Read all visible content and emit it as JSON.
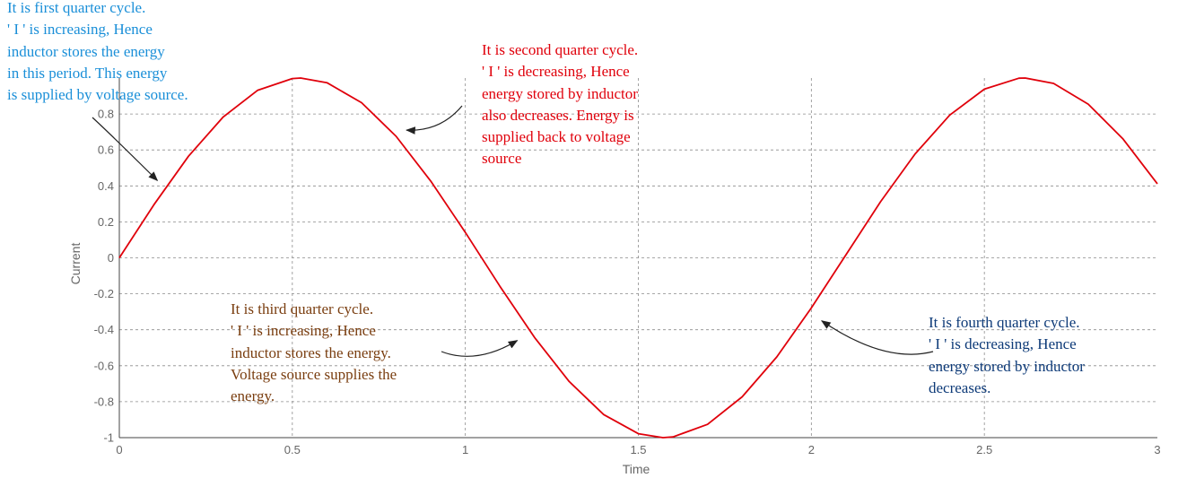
{
  "chart_data": {
    "type": "line",
    "title": "",
    "xlabel": "Time",
    "ylabel": "Current",
    "xlim": [
      0,
      3
    ],
    "ylim": [
      -1,
      1
    ],
    "x_ticks": [
      "0",
      "0.5",
      "1",
      "1.5",
      "2",
      "2.5",
      "3"
    ],
    "y_ticks": [
      "-1",
      "-0.8",
      "-0.6",
      "-0.4",
      "-0.2",
      "0",
      "0.2",
      "0.4",
      "0.6",
      "0.8"
    ],
    "grid": true,
    "series": [
      {
        "color": "#e0000b",
        "x": [
          0,
          0.1,
          0.2,
          0.3,
          0.4,
          0.5,
          0.524,
          0.6,
          0.7,
          0.8,
          0.9,
          1.0,
          1.1,
          1.2,
          1.3,
          1.4,
          1.5,
          1.571,
          1.6,
          1.7,
          1.8,
          1.9,
          2.0,
          2.1,
          2.2,
          2.3,
          2.4,
          2.5,
          2.6,
          2.618,
          2.7,
          2.8,
          2.9,
          3.0
        ],
        "y": [
          0,
          0.296,
          0.565,
          0.783,
          0.932,
          0.997,
          1.0,
          0.974,
          0.863,
          0.676,
          0.427,
          0.141,
          -0.158,
          -0.443,
          -0.688,
          -0.872,
          -0.978,
          -1.0,
          -0.996,
          -0.926,
          -0.773,
          -0.551,
          -0.279,
          0.017,
          0.312,
          0.578,
          0.794,
          0.938,
          0.999,
          1.0,
          0.97,
          0.855,
          0.663,
          0.412
        ]
      }
    ],
    "annotations": [
      {
        "id": "q1",
        "color": "#1a8fd8",
        "lines": [
          "It is first quarter cycle.",
          "' I ' is increasing, Hence",
          "inductor stores the energy",
          "in this period. This energy",
          "is supplied by voltage source."
        ],
        "points_to": {
          "x": 0.11,
          "y": 0.43
        }
      },
      {
        "id": "q2",
        "color": "#e0000b",
        "lines": [
          "It is second quarter cycle.",
          "' I ' is decreasing, Hence",
          "energy stored by inductor",
          "also decreases. Energy is",
          "supplied back to voltage",
          "source"
        ],
        "points_to": {
          "x": 0.83,
          "y": 0.71
        }
      },
      {
        "id": "q3",
        "color": "#7a3e10",
        "lines": [
          "It is third quarter cycle.",
          "' I ' is increasing, Hence",
          "inductor stores the energy.",
          "Voltage source supplies the",
          "energy."
        ],
        "points_to": {
          "x": 1.15,
          "y": -0.46
        }
      },
      {
        "id": "q4",
        "color": "#0d3a78",
        "lines": [
          "It is fourth quarter cycle.",
          "' I ' is decreasing, Hence",
          "energy stored by inductor",
          "decreases."
        ],
        "points_to": {
          "x": 2.03,
          "y": -0.35
        }
      }
    ]
  }
}
